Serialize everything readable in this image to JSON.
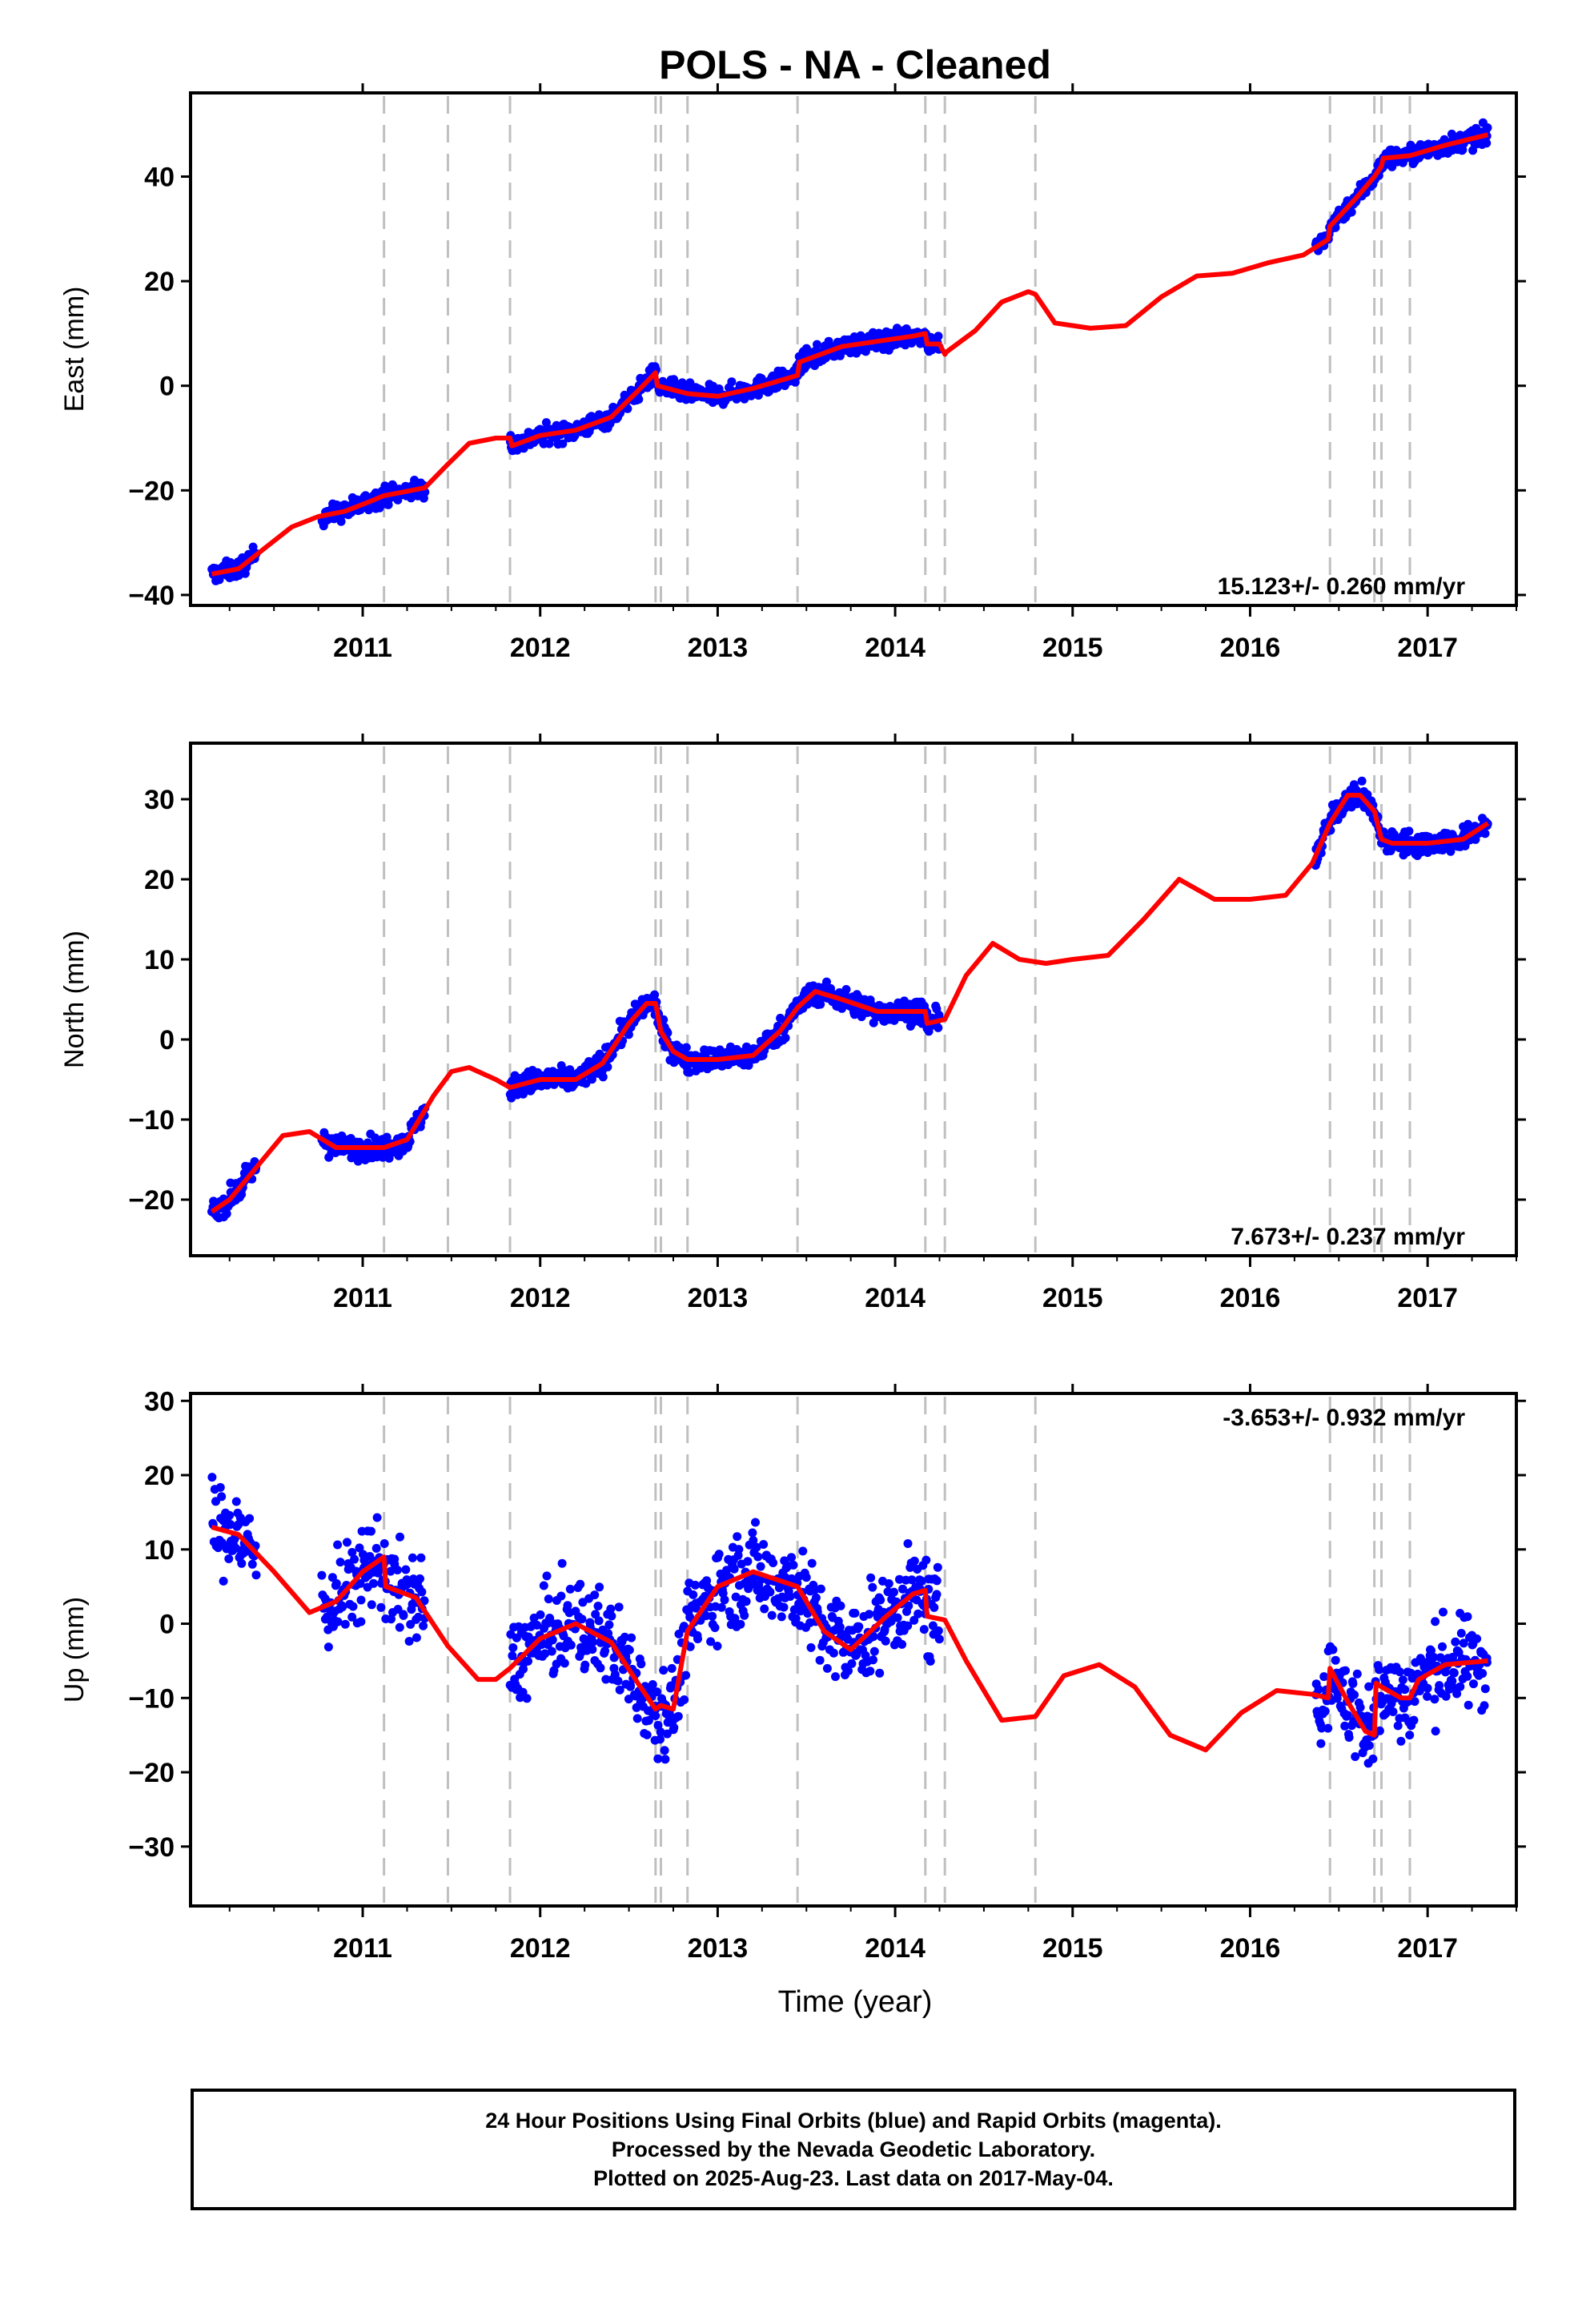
{
  "chart_data": {
    "type": "scatter",
    "title": "POLS  - NA - Cleaned",
    "xlabel": "Time (year)",
    "x_range": [
      2010.03,
      2017.5
    ],
    "x_ticks": [
      2011,
      2012,
      2013,
      2014,
      2015,
      2016,
      2017
    ],
    "tick_labels": [
      "2011",
      "2012",
      "2013",
      "2014",
      "2015",
      "2016",
      "2017"
    ],
    "dashed_lines": [
      2011.12,
      2011.48,
      2011.83,
      2012.65,
      2012.68,
      2012.83,
      2013.45,
      2014.17,
      2014.28,
      2014.79,
      2016.45,
      2016.7,
      2016.74,
      2016.9
    ],
    "data_segments": [
      [
        2010.15,
        2010.4
      ],
      [
        2010.77,
        2011.35
      ],
      [
        2011.83,
        2014.25
      ],
      [
        2016.37,
        2017.34
      ]
    ],
    "point_color": "#0000ff",
    "model_color": "#ff0000",
    "panels": [
      {
        "component": "east",
        "ylabel": "East (mm)",
        "ylim": [
          -42,
          56
        ],
        "yticks": [
          -40,
          -20,
          0,
          20,
          40
        ],
        "ytick_labels": [
          "−40",
          "−20",
          "0",
          "20",
          "40"
        ],
        "rate_text": "15.123+/- 0.260 mm/yr",
        "rate_position": "bottom-right",
        "scatter_sigma": 1.6,
        "model": {
          "x": [
            2010.15,
            2010.3,
            2010.45,
            2010.6,
            2010.75,
            2010.9,
            2011.05,
            2011.12,
            2011.2,
            2011.35,
            2011.48,
            2011.6,
            2011.75,
            2011.83,
            2011.84,
            2012.0,
            2012.2,
            2012.4,
            2012.55,
            2012.65,
            2012.66,
            2012.83,
            2013.0,
            2013.2,
            2013.45,
            2013.46,
            2013.7,
            2013.9,
            2014.1,
            2014.17,
            2014.18,
            2014.25,
            2014.28,
            2014.29,
            2014.45,
            2014.6,
            2014.75,
            2014.79,
            2014.9,
            2015.1,
            2015.3,
            2015.5,
            2015.7,
            2015.9,
            2016.1,
            2016.3,
            2016.44,
            2016.45,
            2016.6,
            2016.7,
            2016.74,
            2016.75,
            2016.9,
            2017.1,
            2017.34
          ],
          "y": [
            -36,
            -35,
            -31,
            -27,
            -25,
            -24,
            -22,
            -21,
            -20.5,
            -19.5,
            -15,
            -11,
            -10,
            -10,
            -11.5,
            -9.5,
            -8.5,
            -6,
            -1,
            2.5,
            0,
            -1.5,
            -2,
            -0.5,
            2,
            4.5,
            7.5,
            8.5,
            9.5,
            10,
            8,
            8,
            6,
            6.5,
            10.5,
            16,
            18,
            17.5,
            12,
            11,
            11.5,
            17,
            21,
            21.5,
            23.5,
            25,
            28,
            30.5,
            36,
            40,
            42,
            43.5,
            44,
            46,
            48
          ]
        }
      },
      {
        "component": "north",
        "ylabel": "North (mm)",
        "ylim": [
          -27,
          37
        ],
        "yticks": [
          -20,
          -10,
          0,
          10,
          20,
          30
        ],
        "ytick_labels": [
          "−20",
          "−10",
          "0",
          "10",
          "20",
          "30"
        ],
        "rate_text": "7.673+/- 0.237 mm/yr",
        "rate_position": "bottom-right",
        "scatter_sigma": 1.3,
        "model": {
          "x": [
            2010.15,
            2010.25,
            2010.4,
            2010.55,
            2010.7,
            2010.85,
            2011.0,
            2011.12,
            2011.25,
            2011.4,
            2011.5,
            2011.6,
            2011.75,
            2011.83,
            2012.0,
            2012.2,
            2012.35,
            2012.5,
            2012.6,
            2012.65,
            2012.68,
            2012.75,
            2012.83,
            2013.0,
            2013.2,
            2013.35,
            2013.45,
            2013.55,
            2013.7,
            2013.9,
            2014.1,
            2014.17,
            2014.18,
            2014.28,
            2014.4,
            2014.55,
            2014.7,
            2014.85,
            2015.0,
            2015.2,
            2015.4,
            2015.6,
            2015.8,
            2016.0,
            2016.2,
            2016.35,
            2016.45,
            2016.55,
            2016.62,
            2016.7,
            2016.74,
            2016.8,
            2017.0,
            2017.2,
            2017.34
          ],
          "y": [
            -21.5,
            -20,
            -16,
            -12,
            -11.5,
            -13.5,
            -13.5,
            -13.5,
            -12.5,
            -7,
            -4,
            -3.5,
            -5,
            -6,
            -5,
            -5,
            -3,
            2,
            4.5,
            4.5,
            1,
            -1.5,
            -2.5,
            -2.5,
            -2,
            1,
            4,
            6,
            5,
            3.5,
            3.5,
            3.5,
            2,
            2.5,
            8,
            12,
            10,
            9.5,
            10,
            10.5,
            15,
            20,
            17.5,
            17.5,
            18,
            22,
            27,
            30.5,
            30.5,
            28.5,
            25,
            24.5,
            24.5,
            25,
            27
          ]
        }
      },
      {
        "component": "up",
        "ylabel": "Up (mm)",
        "ylim": [
          -38,
          31
        ],
        "yticks": [
          -30,
          -20,
          -10,
          0,
          10,
          20,
          30
        ],
        "ytick_labels": [
          "−30",
          "−20",
          "−10",
          "0",
          "10",
          "20",
          "30"
        ],
        "rate_text": "-3.653+/- 0.932 mm/yr",
        "rate_position": "top-right",
        "scatter_sigma": 5.5,
        "model": {
          "x": [
            2010.15,
            2010.3,
            2010.5,
            2010.7,
            2010.85,
            2011.0,
            2011.12,
            2011.13,
            2011.3,
            2011.48,
            2011.65,
            2011.75,
            2011.83,
            2012.0,
            2012.2,
            2012.4,
            2012.55,
            2012.65,
            2012.68,
            2012.75,
            2012.83,
            2013.0,
            2013.2,
            2013.45,
            2013.6,
            2013.75,
            2013.95,
            2014.1,
            2014.17,
            2014.18,
            2014.28,
            2014.4,
            2014.6,
            2014.79,
            2014.95,
            2015.15,
            2015.35,
            2015.55,
            2015.75,
            2015.95,
            2016.15,
            2016.35,
            2016.44,
            2016.45,
            2016.55,
            2016.65,
            2016.7,
            2016.71,
            2016.74,
            2016.85,
            2016.9,
            2016.95,
            2017.1,
            2017.34
          ],
          "y": [
            13,
            12,
            7,
            1.5,
            3,
            7,
            9,
            5,
            3.5,
            -3,
            -7.5,
            -7.5,
            -6,
            -2,
            0,
            -2.5,
            -8,
            -11.5,
            -11,
            -11.5,
            -1,
            5,
            7,
            5,
            -1,
            -3.5,
            1,
            4,
            4.5,
            1,
            0.5,
            -5,
            -13,
            -12.5,
            -7,
            -5.5,
            -8.5,
            -15,
            -17,
            -12,
            -9,
            -9.5,
            -10,
            -6,
            -10.5,
            -14.5,
            -15,
            -8,
            -8.5,
            -10,
            -10,
            -7.5,
            -5.5,
            -5
          ]
        }
      }
    ]
  },
  "footer": {
    "line1": "24 Hour Positions Using Final Orbits (blue) and Rapid Orbits (magenta).",
    "line2": "Processed by the Nevada Geodetic Laboratory.",
    "line3": "Plotted on 2025-Aug-23. Last data on 2017-May-04."
  }
}
